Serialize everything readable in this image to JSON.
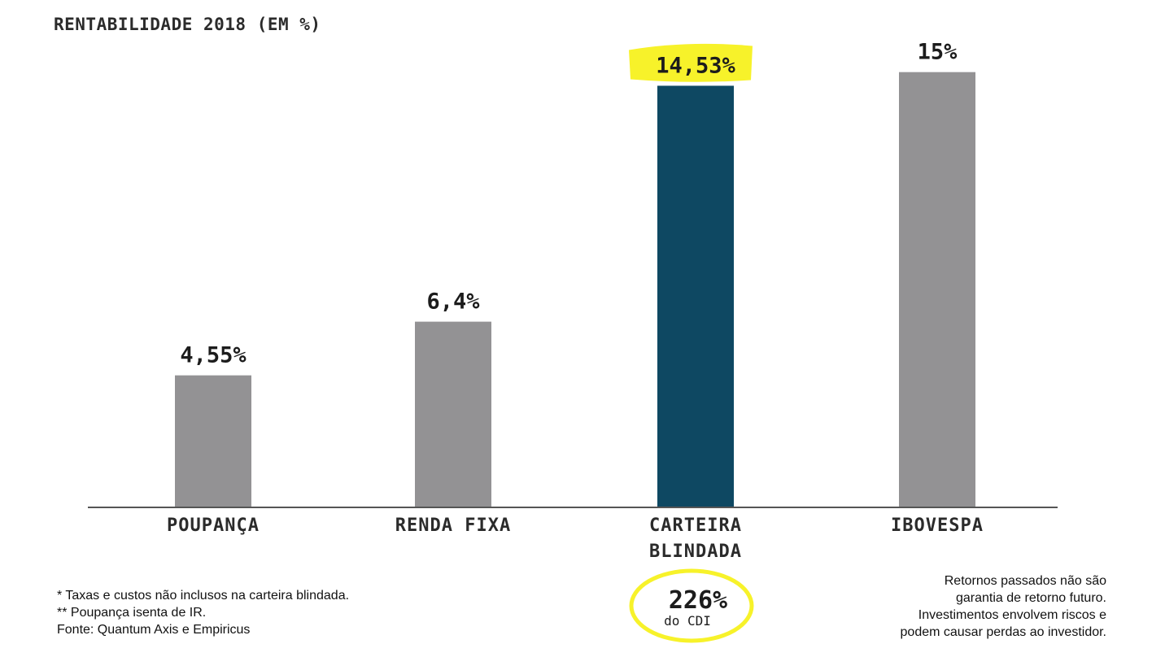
{
  "chart_data": {
    "type": "bar",
    "title": "RENTABILIDADE 2018 (EM %)",
    "categories": [
      "POUPANÇA",
      "RENDA FIXA",
      "CARTEIRA BLINDADA",
      "IBOVESPA"
    ],
    "category_lines": [
      [
        "POUPANÇA"
      ],
      [
        "RENDA FIXA"
      ],
      [
        "CARTEIRA",
        "BLINDADA"
      ],
      [
        "IBOVESPA"
      ]
    ],
    "values": [
      4.55,
      6.4,
      14.53,
      15
    ],
    "value_labels": [
      "4,55%",
      "6,4%",
      "14,53%",
      "15%"
    ],
    "bar_colors": [
      "#939294",
      "#939294",
      "#0e4862",
      "#939294"
    ],
    "highlight_color": "#f7f22a",
    "highlight_index": 2,
    "annotation": {
      "value": "226%",
      "label": "do CDI",
      "under_index": 2
    },
    "ylim": [
      0,
      16
    ],
    "grid": false
  },
  "notes": {
    "left": [
      "* Taxas e custos não inclusos na carteira blindada.",
      "** Poupança isenta de IR.",
      "Fonte: Quantum Axis e Empiricus"
    ],
    "right": [
      "Retornos passados não são",
      "garantia de retorno futuro.",
      "Investimentos envolvem riscos e",
      "podem causar perdas ao investidor."
    ]
  }
}
